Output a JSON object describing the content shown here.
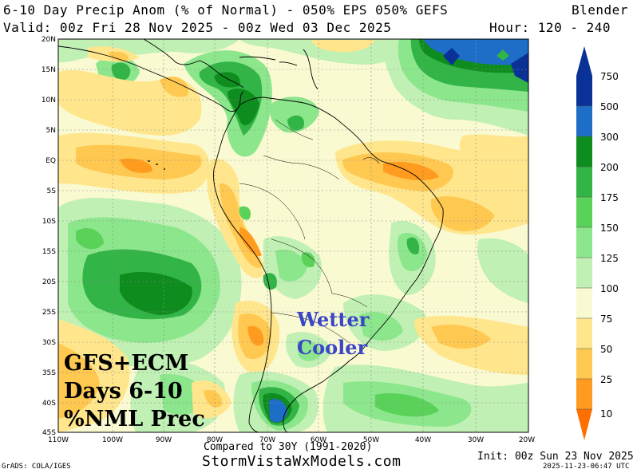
{
  "header": {
    "title": "6-10 Day Precip Anom (% of Normal) - 050% EPS 050% GEFS",
    "model": "Blender",
    "valid": "Valid: 00z Fri 28 Nov 2025 - 00z Wed 03 Dec 2025",
    "hour": "Hour: 120 - 240"
  },
  "map": {
    "lat_labels": [
      "20N",
      "15N",
      "10N",
      "5N",
      "EQ",
      "5S",
      "10S",
      "15S",
      "20S",
      "25S",
      "30S",
      "35S",
      "40S",
      "45S"
    ],
    "lon_labels": [
      "110W",
      "100W",
      "90W",
      "80W",
      "70W",
      "60W",
      "50W",
      "40W",
      "30W",
      "20W"
    ],
    "overlay_black": [
      "GFS+ECM",
      "Days 6-10",
      "%NML Prec"
    ],
    "overlay_blue": [
      "Wetter",
      "Cooler"
    ]
  },
  "colorbar": {
    "levels": [
      "750",
      "500",
      "300",
      "200",
      "175",
      "150",
      "125",
      "100",
      "75",
      "50",
      "25",
      "10"
    ],
    "colors": [
      "#0a3296",
      "#1e6ec8",
      "#0f8c1e",
      "#32b446",
      "#5ad25a",
      "#8ce68c",
      "#c0f0b4",
      "#fafad2",
      "#ffe68c",
      "#ffc850",
      "#ff9b1e",
      "#ff6e00"
    ]
  },
  "footer": {
    "compared": "Compared to 30Y (1991-2020)",
    "website": "StormVistaWxModels.com",
    "init": "Init: 00z Sun 23 Nov 2025",
    "credit": "GrADS: COLA/IGES",
    "timestamp": "2025-11-23-06:47 UTC"
  }
}
